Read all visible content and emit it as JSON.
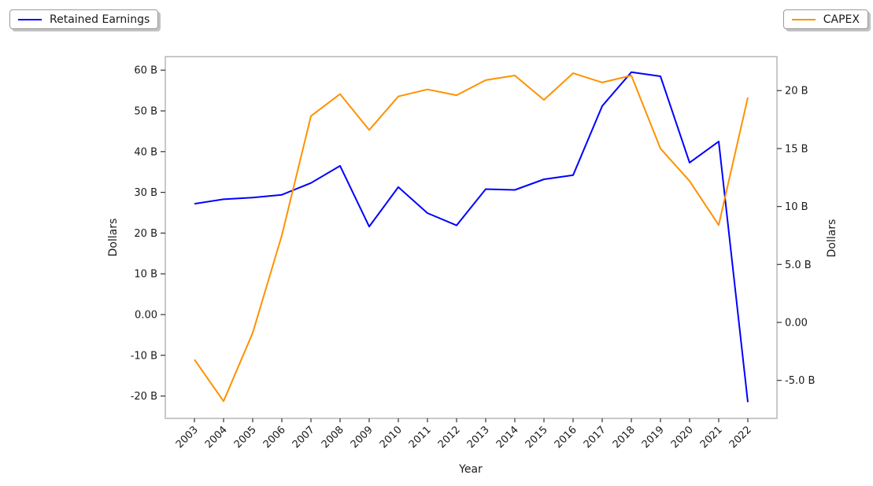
{
  "legend": {
    "retained": {
      "label": "Retained Earnings",
      "color": "#0000FF"
    },
    "capex": {
      "label": "CAPEX",
      "color": "#FF9100"
    }
  },
  "axes": {
    "x_label": "Year",
    "y_left_label": "Dollars",
    "y_right_label": "Dollars"
  },
  "chart_data": {
    "type": "line",
    "title": "",
    "xlabel": "Year",
    "x": [
      2003,
      2004,
      2005,
      2006,
      2007,
      2008,
      2009,
      2010,
      2011,
      2012,
      2013,
      2014,
      2015,
      2016,
      2017,
      2018,
      2019,
      2020,
      2021,
      2022
    ],
    "series": [
      {
        "name": "Retained Earnings",
        "axis": "left",
        "color": "#0000FF",
        "unit": "B Dollars",
        "values": [
          27.2,
          28.3,
          28.7,
          29.4,
          32.3,
          36.5,
          21.6,
          31.3,
          24.9,
          21.9,
          30.8,
          30.6,
          33.2,
          34.2,
          51.2,
          59.5,
          58.5,
          37.3,
          42.5,
          -21.5
        ]
      },
      {
        "name": "CAPEX",
        "axis": "right",
        "color": "#FF9100",
        "unit": "B Dollars",
        "values": [
          -3.2,
          -6.8,
          -0.9,
          7.5,
          17.8,
          19.7,
          16.6,
          19.5,
          20.1,
          19.6,
          20.9,
          21.3,
          19.2,
          21.5,
          20.7,
          21.3,
          15.0,
          12.2,
          8.4,
          19.4
        ]
      }
    ],
    "left_axis": {
      "label": "Dollars",
      "range": [
        -25.5,
        63.3
      ],
      "ticks": [
        {
          "value": 60,
          "label": "60 B"
        },
        {
          "value": 50,
          "label": "50 B"
        },
        {
          "value": 40,
          "label": "40 B"
        },
        {
          "value": 30,
          "label": "30 B"
        },
        {
          "value": 20,
          "label": "20 B"
        },
        {
          "value": 10,
          "label": "10 B"
        },
        {
          "value": 0,
          "label": "0.00"
        },
        {
          "value": -10,
          "label": "-10 B"
        },
        {
          "value": -20,
          "label": "-20 B"
        }
      ]
    },
    "right_axis": {
      "label": "Dollars",
      "range": [
        -8.6,
        22.9
      ],
      "ticks": [
        {
          "value": 20,
          "label": "20 B"
        },
        {
          "value": 15,
          "label": "15 B"
        },
        {
          "value": 10,
          "label": "10 B"
        },
        {
          "value": 5,
          "label": "5.0 B"
        },
        {
          "value": 0,
          "label": "0.00"
        },
        {
          "value": -5,
          "label": "-5.0 B"
        }
      ]
    },
    "legend_position": {
      "retained": "top-left",
      "capex": "top-right"
    },
    "grid": false
  }
}
